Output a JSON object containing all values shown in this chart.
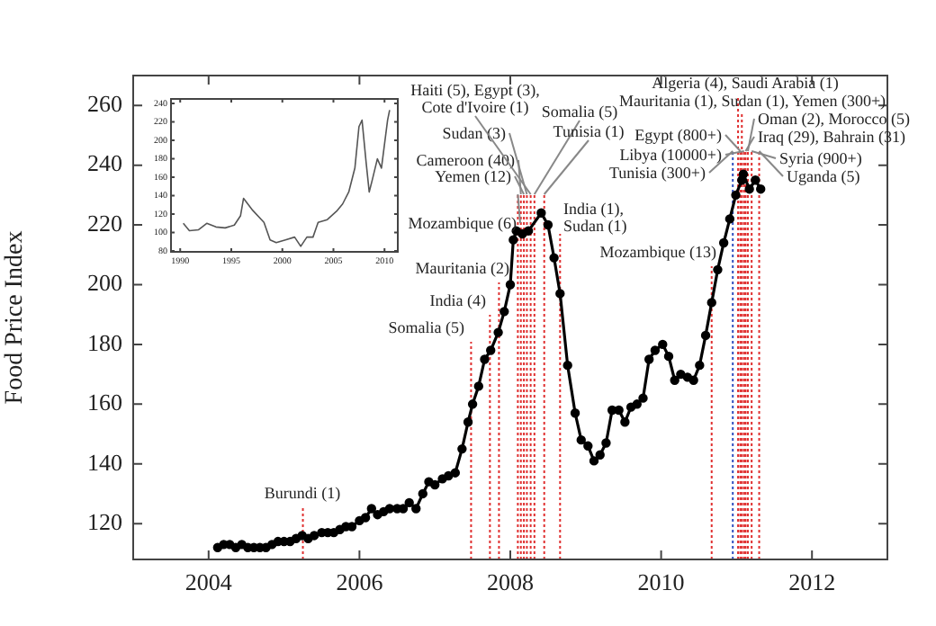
{
  "chart_data": [
    {
      "type": "line",
      "ylabel": "Food Price Index",
      "color": "#000000",
      "marker": "circle",
      "grid": false,
      "legend": false,
      "x": [
        2004.12,
        2004.2,
        2004.28,
        2004.36,
        2004.44,
        2004.52,
        2004.6,
        2004.68,
        2004.76,
        2004.84,
        2004.92,
        2005.0,
        2005.08,
        2005.16,
        2005.24,
        2005.32,
        2005.4,
        2005.5,
        2005.58,
        2005.66,
        2005.74,
        2005.82,
        2005.9,
        2006.0,
        2006.08,
        2006.16,
        2006.24,
        2006.32,
        2006.4,
        2006.5,
        2006.58,
        2006.66,
        2006.75,
        2006.84,
        2006.92,
        2007.0,
        2007.1,
        2007.18,
        2007.27,
        2007.36,
        2007.44,
        2007.5,
        2007.58,
        2007.66,
        2007.74,
        2007.84,
        2007.92,
        2008.0,
        2008.04,
        2008.08,
        2008.16,
        2008.24,
        2008.41,
        2008.5,
        2008.58,
        2008.66,
        2008.76,
        2008.86,
        2008.94,
        2009.03,
        2009.11,
        2009.19,
        2009.27,
        2009.35,
        2009.44,
        2009.52,
        2009.6,
        2009.68,
        2009.76,
        2009.84,
        2009.92,
        2010.02,
        2010.1,
        2010.18,
        2010.26,
        2010.35,
        2010.43,
        2010.51,
        2010.59,
        2010.67,
        2010.75,
        2010.83,
        2010.91,
        2010.99,
        2011.07,
        2011.09,
        2011.17,
        2011.25,
        2011.32
      ],
      "values": [
        112,
        113,
        113,
        112,
        113,
        112,
        112,
        112,
        112,
        113,
        114,
        114,
        114,
        115,
        116,
        115,
        116,
        117,
        117,
        117,
        118,
        119,
        119,
        121,
        122,
        125,
        123,
        124,
        125,
        125,
        125,
        127,
        125,
        130,
        134,
        133,
        135,
        136,
        137,
        145,
        154,
        160,
        166,
        175,
        178,
        184,
        191,
        200,
        215,
        218,
        217,
        218,
        224,
        220,
        209,
        197,
        173,
        157,
        148,
        146,
        141,
        143,
        147,
        158,
        158,
        154,
        159,
        160,
        162,
        175,
        178,
        180,
        176,
        168,
        170,
        169,
        168,
        173,
        183,
        194,
        205,
        214,
        222,
        230,
        235,
        237,
        232,
        235,
        232
      ],
      "xlim": [
        2003,
        2013
      ],
      "ylim": [
        108,
        270
      ],
      "xticks": [
        2004,
        2006,
        2008,
        2010,
        2012
      ],
      "yticks": [
        120,
        140,
        160,
        180,
        200,
        220,
        240,
        260
      ],
      "ref_lines": [
        {
          "axis": "x",
          "value": 2005.25,
          "label": "Burundi (1)",
          "color": "#e03030",
          "line_style": "dotted"
        },
        {
          "axis": "x",
          "value": 2007.48,
          "label": "Somalia (5)",
          "color": "#e03030",
          "line_style": "dotted"
        },
        {
          "axis": "x",
          "value": 2007.73,
          "label": "India (4)",
          "color": "#e03030",
          "line_style": "dotted"
        },
        {
          "axis": "x",
          "value": 2007.85,
          "label": "Mauritania (2)",
          "color": "#e03030",
          "line_style": "dotted"
        },
        {
          "axis": "x",
          "value": 2008.1,
          "label": "Mozambique (6)",
          "color": "#e03030",
          "line_style": "dotted"
        },
        {
          "axis": "x",
          "value": 2008.14,
          "label": "Cameroon (40)",
          "color": "#e03030",
          "line_style": "dotted"
        },
        {
          "axis": "x",
          "value": 2008.18,
          "label": "Yemen (12)",
          "color": "#e03030",
          "line_style": "dotted"
        },
        {
          "axis": "x",
          "value": 2008.22,
          "label": "Sudan (3)",
          "color": "#e03030",
          "line_style": "dotted"
        },
        {
          "axis": "x",
          "value": 2008.27,
          "label": "Haiti (5), Egypt (3), Cote d'Ivoire (1)",
          "color": "#e03030",
          "line_style": "dotted"
        },
        {
          "axis": "x",
          "value": 2008.32,
          "label": "Somalia (5)",
          "color": "#e03030",
          "line_style": "dotted"
        },
        {
          "axis": "x",
          "value": 2008.45,
          "label": "Tunisia (1)",
          "color": "#e03030",
          "line_style": "dotted"
        },
        {
          "axis": "x",
          "value": 2008.66,
          "label": "India (1), Sudan (1)",
          "color": "#e03030",
          "line_style": "dotted"
        },
        {
          "axis": "x",
          "value": 2010.67,
          "label": "Mozambique (13)",
          "color": "#e03030",
          "line_style": "dotted"
        },
        {
          "axis": "x",
          "value": 2010.95,
          "label": "Tunisia (300+)",
          "color": "#3050c0",
          "line_style": "dotted"
        },
        {
          "axis": "x",
          "value": 2011.1,
          "label": "Libya (10000+)",
          "color": "#e03030",
          "line_style": "dotted"
        },
        {
          "axis": "x",
          "value": 2011.05,
          "label": "Egypt (800+)",
          "color": "#e03030",
          "line_style": "dotted"
        },
        {
          "axis": "x",
          "value": 2011.02,
          "label": "Algeria (4), Saudi Arabia (1)",
          "color": "#e03030",
          "line_style": "dotted"
        },
        {
          "axis": "x",
          "value": 2011.07,
          "label": "Mauritania (1), Sudan (1), Yemen (300+)",
          "color": "#e03030",
          "line_style": "dotted"
        },
        {
          "axis": "x",
          "value": 2011.15,
          "label": "Oman (2), Morocco (5)",
          "color": "#e03030",
          "line_style": "dotted"
        },
        {
          "axis": "x",
          "value": 2011.12,
          "label": "Iraq (29), Bahrain (31)",
          "color": "#e03030",
          "line_style": "dotted"
        },
        {
          "axis": "x",
          "value": 2011.2,
          "label": "Syria (900+)",
          "color": "#e03030",
          "line_style": "dotted"
        },
        {
          "axis": "x",
          "value": 2011.3,
          "label": "Uganda (5)",
          "color": "#e03030",
          "line_style": "dotted"
        }
      ]
    },
    {
      "type": "line",
      "color": "#555555",
      "marker": "none",
      "grid": false,
      "legend": false,
      "x": [
        1990.3,
        1990.9,
        1991.8,
        1992.6,
        1993.5,
        1994.4,
        1995.3,
        1995.9,
        1996.2,
        1997.1,
        1998.2,
        1998.8,
        1999.4,
        2000.3,
        2001.2,
        2001.8,
        2002.4,
        2003.0,
        2003.5,
        2004.4,
        2005.3,
        2005.9,
        2006.5,
        2007.1,
        2007.5,
        2007.8,
        2008.2,
        2008.5,
        2008.8,
        2009.3,
        2009.7,
        2010.3,
        2010.5
      ],
      "values": [
        110,
        102,
        103,
        110,
        106,
        105,
        108,
        118,
        137,
        124,
        111,
        92,
        89,
        92,
        95,
        85,
        95,
        95,
        111,
        114,
        123,
        131,
        144,
        170,
        215,
        222,
        176,
        144,
        157,
        180,
        170,
        222,
        233
      ],
      "xlim": [
        1989.1,
        2011.3
      ],
      "ylim": [
        79,
        245
      ],
      "xticks": [
        1990,
        1995,
        2000,
        2005,
        2010
      ],
      "yticks": [
        80,
        100,
        120,
        140,
        160,
        180,
        200,
        220,
        240
      ]
    }
  ]
}
